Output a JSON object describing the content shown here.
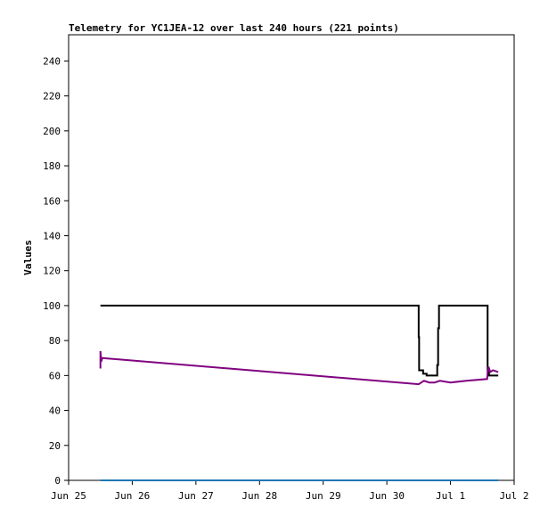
{
  "chart_data": {
    "type": "line",
    "title": "Telemetry for YC1JEA-12 over last 240 hours (221 points)",
    "xlabel": "",
    "ylabel": "Values",
    "xlim": [
      "Jun 25 00:00",
      "Jul 2 00:00"
    ],
    "ylim": [
      0,
      255
    ],
    "x_ticks": [
      "Jun 25",
      "Jun 26",
      "Jun 27",
      "Jun 28",
      "Jun 29",
      "Jun 30",
      "Jul 1",
      "Jul 2"
    ],
    "y_ticks": [
      0,
      20,
      40,
      60,
      80,
      100,
      120,
      140,
      160,
      180,
      200,
      220,
      240
    ],
    "grid": false,
    "legend": "none",
    "series": [
      {
        "color": "#000000",
        "style": "step",
        "points": [
          [
            "Jun 25 12:00",
            100
          ],
          [
            "Jun 30 12:00",
            100
          ],
          [
            "Jun 30 12:00",
            82
          ],
          [
            "Jun 30 12:10",
            63
          ],
          [
            "Jun 30 13:20",
            63
          ],
          [
            "Jun 30 13:40",
            61
          ],
          [
            "Jun 30 15:00",
            60
          ],
          [
            "Jun 30 18:30",
            60
          ],
          [
            "Jun 30 19:00",
            66
          ],
          [
            "Jun 30 19:20",
            87
          ],
          [
            "Jun 30 19:40",
            100
          ],
          [
            "Jul 1 13:50",
            100
          ],
          [
            "Jul 1 14:00",
            63
          ],
          [
            "Jul 1 14:30",
            60
          ],
          [
            "Jul 1 18:00",
            60
          ]
        ]
      },
      {
        "color": "#800080",
        "style": "line",
        "points": [
          [
            "Jun 25 12:00",
            64
          ],
          [
            "Jun 25 12:00",
            74
          ],
          [
            "Jun 25 12:20",
            68
          ],
          [
            "Jun 25 12:40",
            70
          ],
          [
            "Jun 30 12:00",
            55
          ],
          [
            "Jun 30 13:00",
            56
          ],
          [
            "Jun 30 14:00",
            57
          ],
          [
            "Jun 30 16:00",
            56
          ],
          [
            "Jun 30 18:00",
            56
          ],
          [
            "Jun 30 20:00",
            57
          ],
          [
            "Jul 1 00:00",
            56
          ],
          [
            "Jul 1 06:00",
            57
          ],
          [
            "Jul 1 13:50",
            58
          ],
          [
            "Jul 1 14:00",
            62
          ],
          [
            "Jul 1 14:20",
            65
          ],
          [
            "Jul 1 15:00",
            62
          ],
          [
            "Jul 1 16:00",
            63
          ],
          [
            "Jul 1 18:00",
            62
          ]
        ]
      },
      {
        "color": "#1f77b4",
        "style": "line",
        "points": [
          [
            "Jun 25 12:00",
            0
          ],
          [
            "Jul 1 18:00",
            0
          ]
        ]
      }
    ]
  }
}
